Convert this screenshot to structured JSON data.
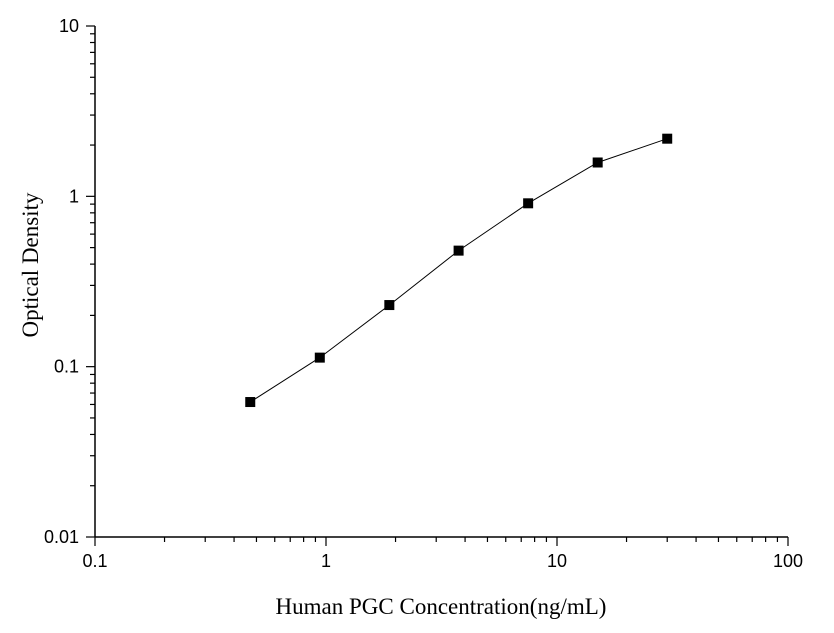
{
  "chart_data": {
    "type": "line",
    "xlabel": "Human PGC Concentration(ng/mL)",
    "ylabel": "Optical Density",
    "xscale": "log",
    "yscale": "log",
    "xlim": [
      0.1,
      100
    ],
    "ylim": [
      0.01,
      10
    ],
    "x_ticks": [
      "0.1",
      "1",
      "10",
      "100"
    ],
    "y_ticks": [
      "0.01",
      "0.1",
      "1",
      "10"
    ],
    "grid": false,
    "marker": "square",
    "series": [
      {
        "x": [
          0.47,
          0.94,
          1.88,
          3.75,
          7.5,
          15,
          30
        ],
        "y": [
          0.062,
          0.113,
          0.23,
          0.48,
          0.91,
          1.58,
          2.18
        ]
      }
    ]
  }
}
